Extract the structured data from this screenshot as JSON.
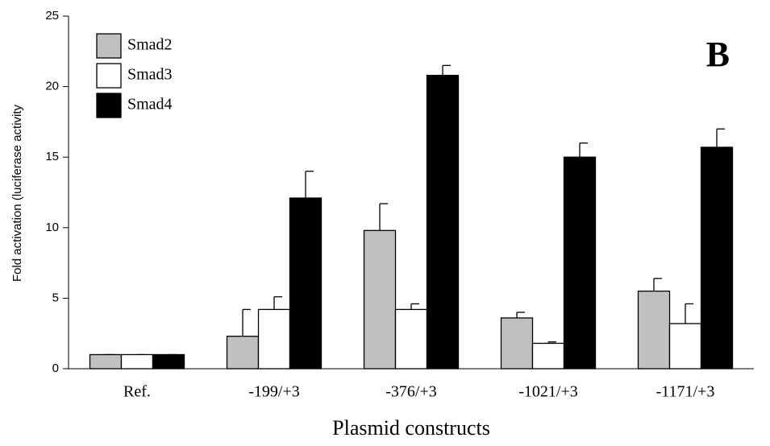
{
  "chart_data": {
    "type": "bar",
    "y_label": "Fold activation (luciferase activity",
    "x_label": "Plasmid constructs",
    "annotation": "B",
    "categories": [
      "Ref.",
      "-199/+3",
      "-376/+3",
      "-1021/+3",
      "-1171/+3"
    ],
    "series": [
      {
        "name": "Smad2",
        "color": "#c0c0c0",
        "values": [
          1,
          2.3,
          9.8,
          3.6,
          5.5
        ],
        "errors": [
          0,
          1.9,
          1.9,
          0.4,
          0.9
        ]
      },
      {
        "name": "Smad3",
        "color": "#ffffff",
        "values": [
          1,
          4.2,
          4.2,
          1.8,
          3.2
        ],
        "errors": [
          0,
          0.9,
          0.4,
          0.1,
          1.4
        ]
      },
      {
        "name": "Smad4",
        "color": "#000000",
        "values": [
          1,
          12.1,
          20.8,
          15.0,
          15.7
        ],
        "errors": [
          0,
          1.9,
          0.7,
          1.0,
          1.3
        ]
      }
    ],
    "ylim": [
      0,
      25
    ],
    "yticks": [
      0,
      5,
      10,
      15,
      20,
      25
    ],
    "legend": "upper left"
  }
}
